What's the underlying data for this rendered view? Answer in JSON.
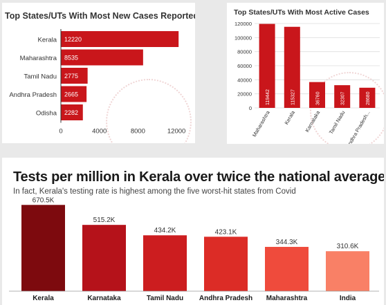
{
  "chart_data": [
    {
      "type": "bar",
      "orientation": "horizontal",
      "title": "Top States/UTs With Most New Cases Reported",
      "categories": [
        "Kerala",
        "Maharashtra",
        "Tamil Nadu",
        "Andhra Pradesh",
        "Odisha"
      ],
      "values": [
        12220,
        8535,
        2775,
        2665,
        2282
      ],
      "data_labels": [
        "12220",
        "8535",
        "2775",
        "2665",
        "2282"
      ],
      "x_ticks": [
        "0",
        "4000",
        "8000",
        "12000"
      ],
      "x_tick_values": [
        0,
        4000,
        8000,
        12000
      ],
      "xlim": [
        0,
        13500
      ],
      "grid": false,
      "color": "#c9161b"
    },
    {
      "type": "bar",
      "orientation": "vertical",
      "title": "Top States/UTs With Most Active Cases",
      "categories": [
        "Maharashtra",
        "Kerala",
        "Karnataka",
        "Tamil Nadu",
        "Andhra Pradesh"
      ],
      "category_labels": [
        "Maharashtra",
        "Kerala",
        "Karnataka",
        "Tamil Nadu",
        "Andhra Pradesh..."
      ],
      "values": [
        119442,
        115327,
        36760,
        32307,
        28680
      ],
      "data_labels": [
        "119442",
        "115327",
        "36760",
        "32307",
        "28680"
      ],
      "y_ticks": [
        "0",
        "20000",
        "40000",
        "60000",
        "80000",
        "100000",
        "120000"
      ],
      "y_tick_values": [
        0,
        20000,
        40000,
        60000,
        80000,
        100000,
        120000
      ],
      "ylim": [
        0,
        120000
      ],
      "grid": true,
      "color": "#c9161b"
    },
    {
      "type": "bar",
      "orientation": "vertical",
      "title": "Tests per million in Kerala over twice the national average",
      "subtitle": "In fact, Kerala's testing rate is highest among the five worst-hit states from Covid",
      "categories": [
        "Kerala",
        "Karnataka",
        "Tamil Nadu",
        "Andhra Pradesh",
        "Maharashtra",
        "India"
      ],
      "values": [
        670.5,
        515.2,
        434.2,
        423.1,
        344.3,
        310.6
      ],
      "data_labels": [
        "670.5K",
        "515.2K",
        "434.2K",
        "423.1K",
        "344.3K",
        "310.6K"
      ],
      "ylim": [
        0,
        700
      ],
      "grid": false,
      "colors": [
        "#7d0a0e",
        "#b5121a",
        "#cc1d1f",
        "#dc2c26",
        "#ef4b3c",
        "#f98066"
      ]
    }
  ]
}
